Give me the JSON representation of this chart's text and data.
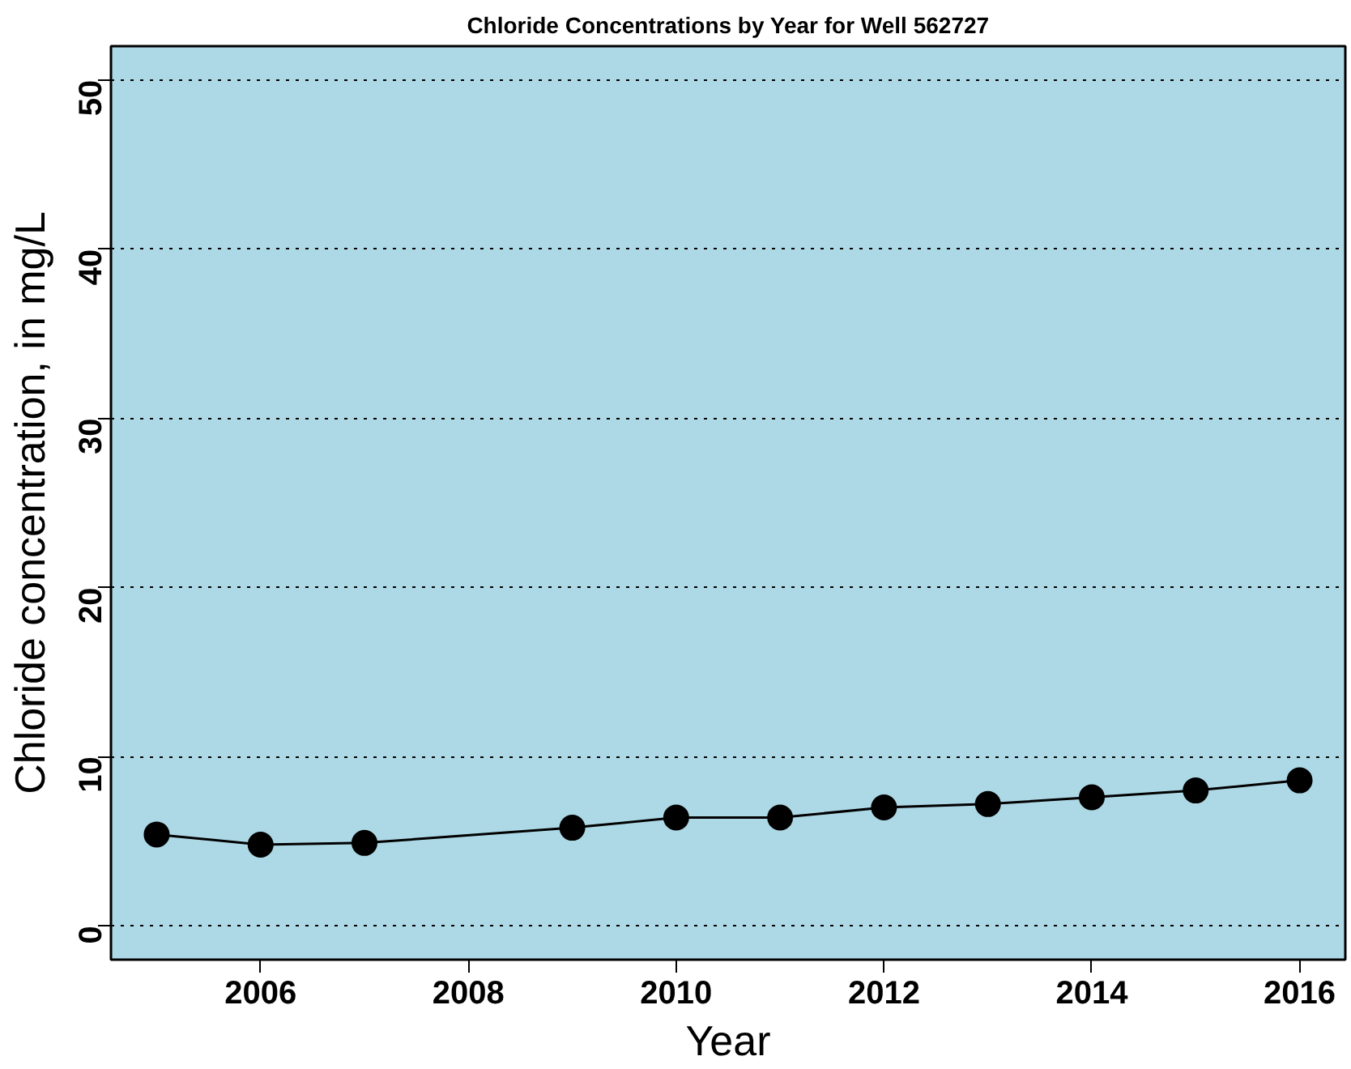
{
  "chart_data": {
    "type": "line",
    "title": "Chloride Concentrations by Year for Well 562727",
    "xlabel": "Year",
    "ylabel": "Chloride concentration, in mg/L",
    "x": [
      2005,
      2006,
      2007,
      2009,
      2010,
      2011,
      2012,
      2013,
      2014,
      2015,
      2016
    ],
    "series": [
      {
        "color": "#000000",
        "values": [
          5.4,
          4.8,
          4.9,
          5.8,
          6.4,
          6.4,
          7.0,
          7.2,
          7.6,
          8.0,
          8.6
        ]
      }
    ],
    "xlim": [
      2004.56,
      2016.44
    ],
    "xticks": [
      2006,
      2008,
      2010,
      2012,
      2014,
      2016
    ],
    "ylim": [
      -2,
      52
    ],
    "yticks": [
      0,
      10,
      20,
      30,
      40,
      50
    ],
    "grid": "y",
    "marker": "circle",
    "line_style": "solid"
  }
}
